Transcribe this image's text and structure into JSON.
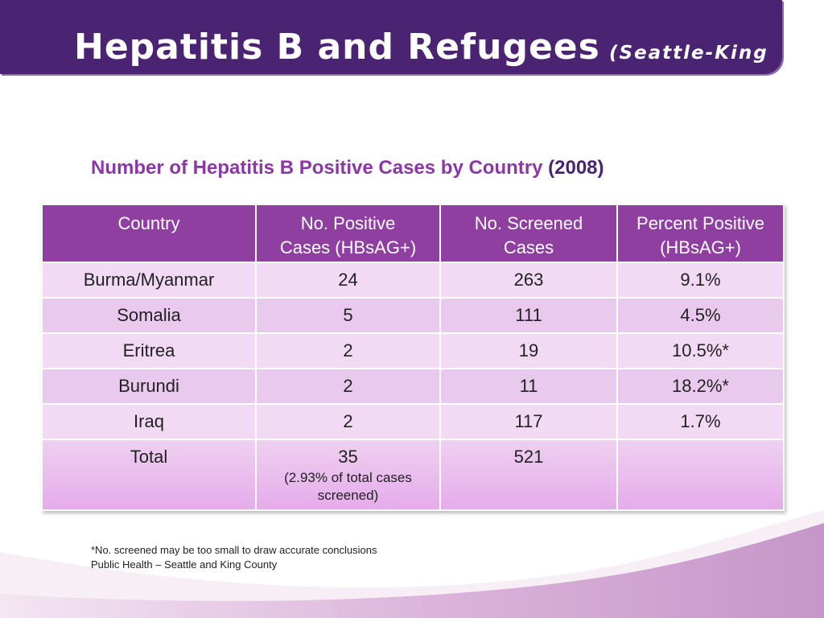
{
  "slide": {
    "title": "Hepatitis B and Refugees",
    "title_suffix": "(Seattle-King",
    "subtitle": "Number of Hepatitis B Positive Cases by Country",
    "subtitle_year": "(2008)"
  },
  "table": {
    "headers": [
      [
        "Country"
      ],
      [
        "No. Positive",
        "Cases (HBsAG+)"
      ],
      [
        "No. Screened",
        "Cases"
      ],
      [
        "Percent Positive",
        "(HBsAG+)"
      ]
    ],
    "rows": [
      [
        "Burma/Myanmar",
        "24",
        "263",
        "9.1%"
      ],
      [
        "Somalia",
        "5",
        "111",
        "4.5%"
      ],
      [
        "Eritrea",
        "2",
        "19",
        "10.5%*"
      ],
      [
        "Burundi",
        "2",
        "11",
        "18.2%*"
      ],
      [
        "Iraq",
        "2",
        "117",
        "1.7%"
      ]
    ],
    "total": {
      "label": "Total",
      "positive": "35",
      "positive_note": "(2.93% of total cases screened)",
      "screened": "521",
      "percent": ""
    }
  },
  "footnotes": [
    "*No. screened may be too small to draw accurate conclusions",
    "Public Health – Seattle and King County"
  ],
  "colors": {
    "title_bar": "#4a2472",
    "header": "#8f3fa0",
    "subtitle": "#8b38a6",
    "row_light": "#f2d9f4",
    "row_dark": "#eac9ee"
  }
}
